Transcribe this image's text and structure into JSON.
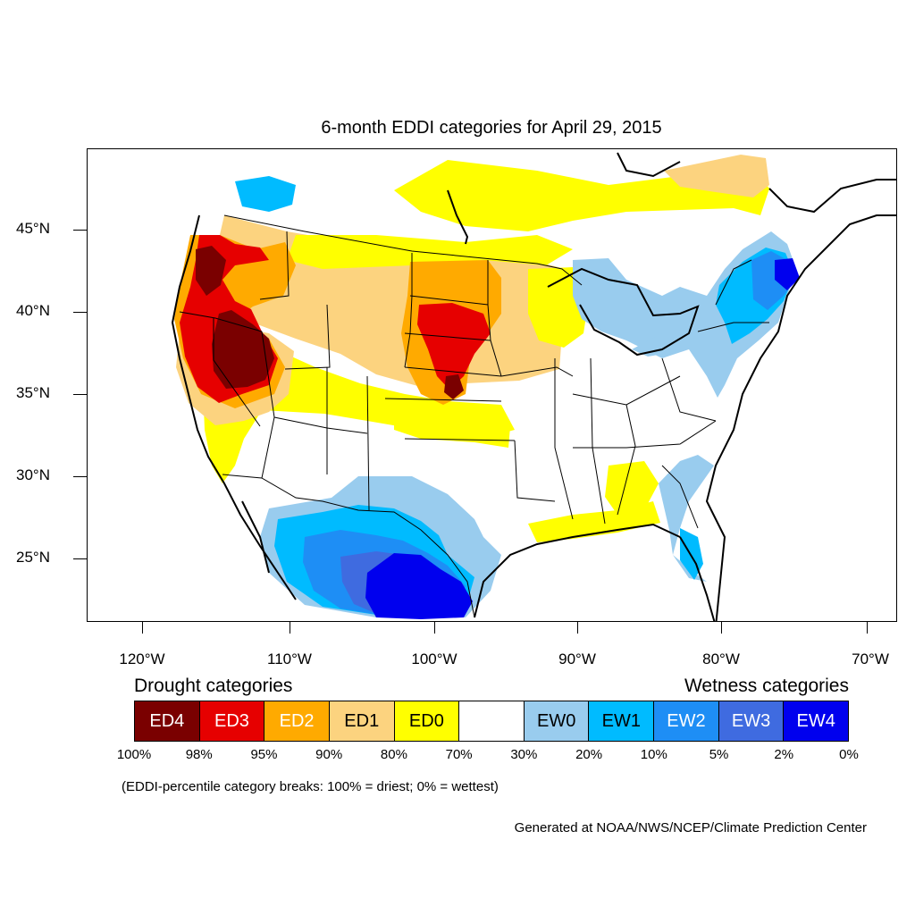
{
  "title": "6-month EDDI categories for April 29, 2015",
  "lat_labels": [
    "45°N",
    "40°N",
    "35°N",
    "30°N",
    "25°N"
  ],
  "lon_labels": [
    "120°W",
    "110°W",
    "100°W",
    "90°W",
    "80°W",
    "70°W"
  ],
  "legend": {
    "drought_heading": "Drought categories",
    "wetness_heading": "Wetness categories",
    "categories": [
      {
        "label": "ED4",
        "color": "#7a0000",
        "text_color": "#ffffff"
      },
      {
        "label": "ED3",
        "color": "#e60000",
        "text_color": "#ffffff"
      },
      {
        "label": "ED2",
        "color": "#ffaa00",
        "text_color": "#ffffff"
      },
      {
        "label": "ED1",
        "color": "#fcd37f",
        "text_color": "#000000"
      },
      {
        "label": "ED0",
        "color": "#ffff00",
        "text_color": "#000000"
      },
      {
        "label": "",
        "color": "#ffffff",
        "text_color": "#000000"
      },
      {
        "label": "EW0",
        "color": "#99ccee",
        "text_color": "#000000"
      },
      {
        "label": "EW1",
        "color": "#00bbff",
        "text_color": "#000000"
      },
      {
        "label": "EW2",
        "color": "#1e8ef5",
        "text_color": "#ffffff"
      },
      {
        "label": "EW3",
        "color": "#3f6be0",
        "text_color": "#ffffff"
      },
      {
        "label": "EW4",
        "color": "#0000ee",
        "text_color": "#ffffff"
      }
    ],
    "breaks": [
      "100%",
      "98%",
      "95%",
      "90%",
      "80%",
      "70%",
      "30%",
      "20%",
      "10%",
      "5%",
      "2%",
      "0%"
    ]
  },
  "note": "(EDDI-percentile category breaks: 100% = driest; 0% = wettest)",
  "credit": "Generated at NOAA/NWS/NCEP/Climate Prediction Center"
}
